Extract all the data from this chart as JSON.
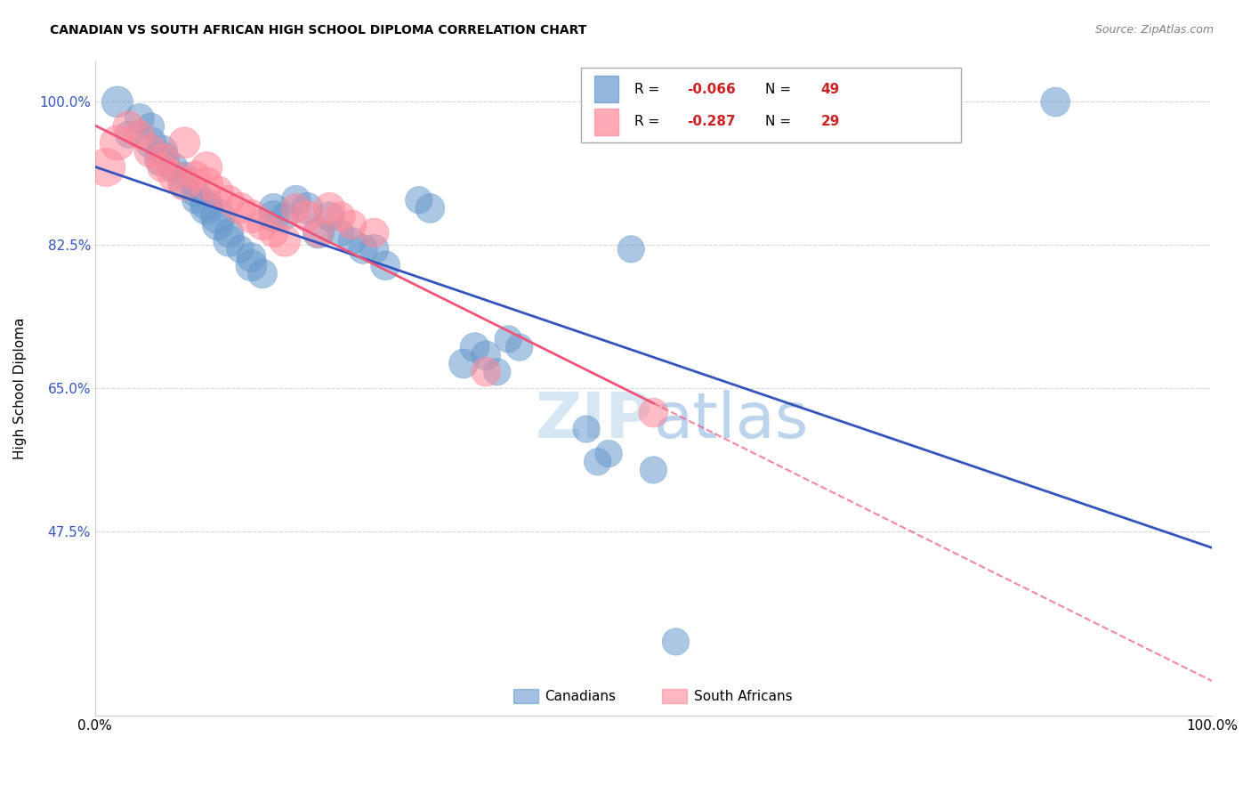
{
  "title": "CANADIAN VS SOUTH AFRICAN HIGH SCHOOL DIPLOMA CORRELATION CHART",
  "source": "Source: ZipAtlas.com",
  "ylabel": "High School Diploma",
  "xlabel": "",
  "legend_label_canadian": "Canadians",
  "legend_label_sa": "South Africans",
  "canadian_R": -0.066,
  "canadian_N": 49,
  "sa_R": -0.287,
  "sa_N": 29,
  "canadian_color": "#6699cc",
  "sa_color": "#ff8899",
  "trend_blue": "#3355bb",
  "trend_pink": "#ee5577",
  "watermark_zip": "ZIP",
  "watermark_atlas": "atlas",
  "ytick_labels": [
    "100.0%",
    "82.5%",
    "65.0%",
    "47.5%"
  ],
  "ytick_values": [
    1.0,
    0.825,
    0.65,
    0.475
  ],
  "xtick_labels": [
    "0.0%",
    "100.0%"
  ],
  "xtick_values": [
    0.0,
    1.0
  ],
  "xlim": [
    0.0,
    1.0
  ],
  "ylim": [
    0.25,
    1.05
  ],
  "canadian_x": [
    0.02,
    0.03,
    0.04,
    0.05,
    0.05,
    0.06,
    0.06,
    0.07,
    0.08,
    0.08,
    0.09,
    0.09,
    0.1,
    0.1,
    0.11,
    0.11,
    0.12,
    0.12,
    0.13,
    0.14,
    0.14,
    0.15,
    0.16,
    0.16,
    0.17,
    0.18,
    0.19,
    0.2,
    0.21,
    0.22,
    0.23,
    0.24,
    0.25,
    0.26,
    0.29,
    0.3,
    0.33,
    0.34,
    0.35,
    0.36,
    0.37,
    0.38,
    0.44,
    0.45,
    0.46,
    0.5,
    0.52,
    0.86,
    0.48
  ],
  "canadian_y": [
    1.0,
    0.96,
    0.98,
    0.97,
    0.95,
    0.93,
    0.94,
    0.92,
    0.91,
    0.9,
    0.89,
    0.88,
    0.875,
    0.87,
    0.86,
    0.85,
    0.84,
    0.83,
    0.82,
    0.81,
    0.8,
    0.79,
    0.86,
    0.87,
    0.86,
    0.88,
    0.87,
    0.84,
    0.86,
    0.84,
    0.83,
    0.82,
    0.82,
    0.8,
    0.88,
    0.87,
    0.68,
    0.7,
    0.69,
    0.67,
    0.71,
    0.7,
    0.6,
    0.56,
    0.57,
    0.55,
    0.34,
    1.0,
    0.82
  ],
  "canadian_sizes": [
    80,
    60,
    70,
    60,
    80,
    100,
    80,
    70,
    60,
    80,
    70,
    60,
    80,
    90,
    100,
    80,
    70,
    80,
    60,
    70,
    80,
    70,
    80,
    70,
    60,
    70,
    80,
    80,
    70,
    60,
    60,
    70,
    70,
    70,
    60,
    70,
    70,
    70,
    70,
    60,
    60,
    60,
    60,
    60,
    60,
    60,
    60,
    70,
    60
  ],
  "sa_x": [
    0.01,
    0.02,
    0.03,
    0.04,
    0.05,
    0.06,
    0.06,
    0.07,
    0.08,
    0.08,
    0.09,
    0.1,
    0.1,
    0.11,
    0.12,
    0.13,
    0.14,
    0.15,
    0.16,
    0.17,
    0.18,
    0.19,
    0.2,
    0.21,
    0.22,
    0.23,
    0.25,
    0.35,
    0.5
  ],
  "sa_y": [
    0.92,
    0.95,
    0.97,
    0.96,
    0.94,
    0.93,
    0.92,
    0.91,
    0.9,
    0.95,
    0.91,
    0.92,
    0.9,
    0.89,
    0.88,
    0.87,
    0.86,
    0.85,
    0.84,
    0.83,
    0.87,
    0.86,
    0.84,
    0.87,
    0.86,
    0.85,
    0.84,
    0.67,
    0.62
  ],
  "sa_sizes": [
    120,
    100,
    80,
    70,
    90,
    80,
    70,
    80,
    90,
    80,
    70,
    80,
    90,
    80,
    70,
    80,
    90,
    80,
    70,
    80,
    70,
    80,
    70,
    80,
    70,
    70,
    70,
    70,
    70
  ]
}
